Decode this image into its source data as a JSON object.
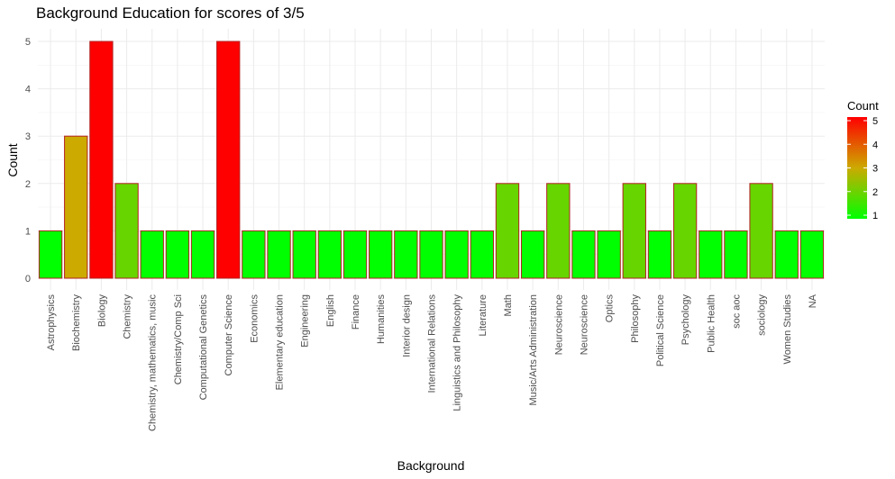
{
  "chart_data": {
    "type": "bar",
    "title": "Background Education for scores of 3/5",
    "xlabel": "Background",
    "ylabel": "Count",
    "categories": [
      "Astrophysics",
      "Biochemistry",
      "Biology",
      "Chemistry",
      "Chemistry, mathematics, music",
      "Chemistry/Comp Sci",
      "Computational Genetics",
      "Computer Science",
      "Economics",
      "Elementary education",
      "Engineering",
      "English",
      "Finance",
      "Humanities",
      "Interior design",
      "International Relations",
      "Linguistics and Philosophy",
      "Literature",
      "Math",
      "Music/Arts Administration",
      "Neuroscience",
      "Neuroscience",
      "Optics",
      "Philosophy",
      "Political Science",
      "Psychology",
      "Public Health",
      "soc aoc",
      "sociology",
      "Women Studies",
      "NA"
    ],
    "values": [
      1,
      3,
      5,
      2,
      1,
      1,
      1,
      5,
      1,
      1,
      1,
      1,
      1,
      1,
      1,
      1,
      1,
      1,
      2,
      1,
      2,
      1,
      1,
      2,
      1,
      2,
      1,
      1,
      2,
      1,
      1
    ],
    "ylim": [
      0,
      5
    ],
    "yticks": [
      "0",
      "1",
      "2",
      "3",
      "4",
      "5"
    ],
    "grid": true,
    "bar_outline_color": "#b22222",
    "color_scale": {
      "low": "#00ff00",
      "mid": "#ccaa00",
      "high": "#ff0000",
      "min": 1,
      "max": 5
    },
    "legend": {
      "title": "Count",
      "labels": [
        "1",
        "2",
        "3",
        "4",
        "5"
      ],
      "placement": "right"
    }
  }
}
